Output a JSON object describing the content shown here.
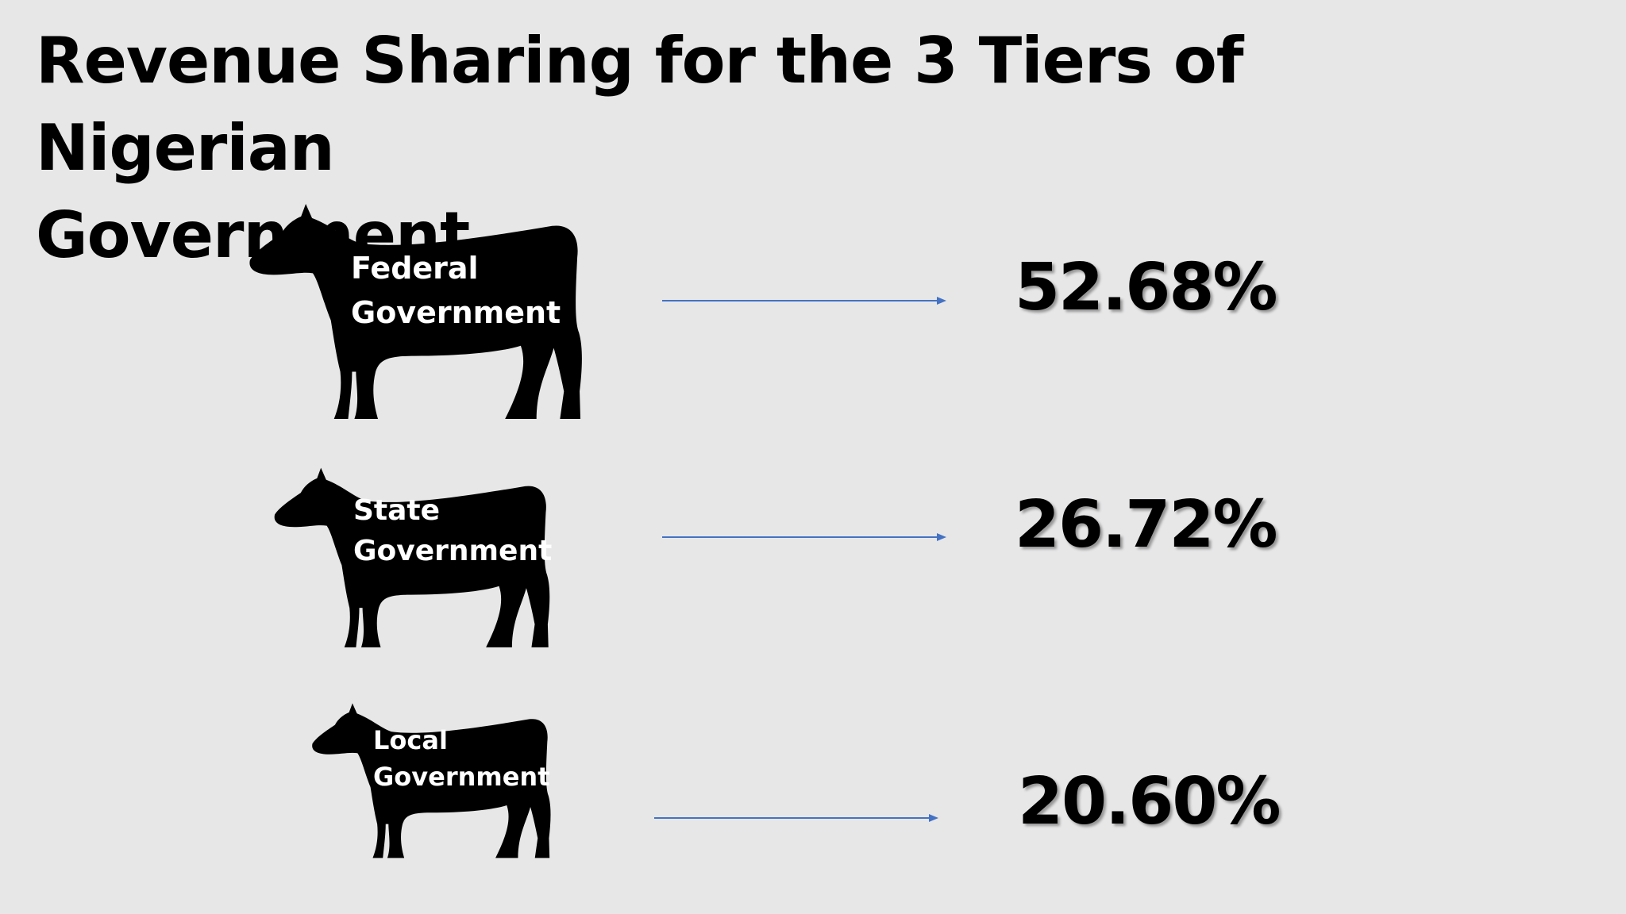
{
  "title": {
    "line1": "Revenue Sharing for the 3 Tiers of Nigerian",
    "line2": "Government"
  },
  "tiers": [
    {
      "label_line1": "Federal",
      "label_line2": "Government",
      "percent": "52.68%",
      "icon": "cow-icon"
    },
    {
      "label_line1": "State",
      "label_line2": "Government",
      "percent": "26.72%",
      "icon": "cow-icon"
    },
    {
      "label_line1": "Local",
      "label_line2": "Government",
      "percent": "20.60%",
      "icon": "cow-icon"
    }
  ],
  "colors": {
    "background": "#e7e7e8",
    "arrow": "#4472c4",
    "text": "#000000",
    "cow": "#000000"
  }
}
